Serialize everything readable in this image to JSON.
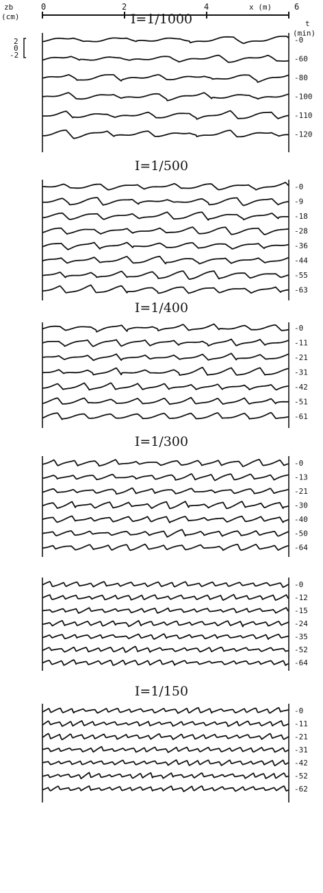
{
  "chart_data": [
    {
      "type": "line",
      "title": "I=1/1000",
      "xlabel": "x (m)",
      "xlabel_unit": "(m)",
      "xticks": [
        0,
        2,
        4,
        6
      ],
      "xlim": [
        0,
        6
      ],
      "ylabel": "zb",
      "ylabel_unit": "(cm)",
      "yticks": [
        "2",
        "0",
        "-2"
      ],
      "tlabel": "t",
      "tlabel_unit": "(min)",
      "series": [
        {
          "name": "0",
          "wavelength": 1.3,
          "amplitude": 2.0,
          "seed": 11
        },
        {
          "name": "60",
          "wavelength": 1.2,
          "amplitude": 2.0,
          "seed": 12
        },
        {
          "name": "80",
          "wavelength": 1.1,
          "amplitude": 2.0,
          "seed": 13
        },
        {
          "name": "100",
          "wavelength": 1.1,
          "amplitude": 2.0,
          "seed": 14
        },
        {
          "name": "110",
          "wavelength": 1.0,
          "amplitude": 2.0,
          "seed": 15
        },
        {
          "name": "120",
          "wavelength": 1.0,
          "amplitude": 2.0,
          "seed": 16
        }
      ]
    },
    {
      "type": "line",
      "title": "I=1/500",
      "series": [
        {
          "name": "0",
          "wavelength": 0.9,
          "amplitude": 1.9,
          "seed": 21
        },
        {
          "name": "9",
          "wavelength": 0.85,
          "amplitude": 1.9,
          "seed": 22
        },
        {
          "name": "18",
          "wavelength": 0.85,
          "amplitude": 1.9,
          "seed": 23
        },
        {
          "name": "28",
          "wavelength": 0.8,
          "amplitude": 1.9,
          "seed": 24
        },
        {
          "name": "36",
          "wavelength": 0.8,
          "amplitude": 1.9,
          "seed": 25
        },
        {
          "name": "44",
          "wavelength": 0.8,
          "amplitude": 1.9,
          "seed": 26
        },
        {
          "name": "55",
          "wavelength": 0.75,
          "amplitude": 1.9,
          "seed": 27
        },
        {
          "name": "63",
          "wavelength": 0.75,
          "amplitude": 1.9,
          "seed": 28
        }
      ]
    },
    {
      "type": "line",
      "title": "I=1/400",
      "series": [
        {
          "name": "0",
          "wavelength": 0.75,
          "amplitude": 1.9,
          "seed": 31
        },
        {
          "name": "11",
          "wavelength": 0.7,
          "amplitude": 1.9,
          "seed": 32
        },
        {
          "name": "21",
          "wavelength": 0.7,
          "amplitude": 1.9,
          "seed": 33
        },
        {
          "name": "31",
          "wavelength": 0.7,
          "amplitude": 1.9,
          "seed": 34
        },
        {
          "name": "42",
          "wavelength": 0.65,
          "amplitude": 1.9,
          "seed": 35
        },
        {
          "name": "51",
          "wavelength": 0.65,
          "amplitude": 1.9,
          "seed": 36
        },
        {
          "name": "61",
          "wavelength": 0.65,
          "amplitude": 1.9,
          "seed": 37
        }
      ]
    },
    {
      "type": "line",
      "title": "I=1/300",
      "series": [
        {
          "name": "0",
          "wavelength": 0.5,
          "amplitude": 1.6,
          "seed": 41
        },
        {
          "name": "13",
          "wavelength": 0.48,
          "amplitude": 1.6,
          "seed": 42
        },
        {
          "name": "21",
          "wavelength": 0.48,
          "amplitude": 1.6,
          "seed": 43
        },
        {
          "name": "30",
          "wavelength": 0.46,
          "amplitude": 1.6,
          "seed": 44
        },
        {
          "name": "40",
          "wavelength": 0.46,
          "amplitude": 1.6,
          "seed": 45
        },
        {
          "name": "50",
          "wavelength": 0.45,
          "amplitude": 1.6,
          "seed": 46
        },
        {
          "name": "64",
          "wavelength": 0.45,
          "amplitude": 1.6,
          "seed": 47
        }
      ]
    },
    {
      "type": "line",
      "title": "",
      "series": [
        {
          "name": "0",
          "wavelength": 0.33,
          "amplitude": 1.3,
          "seed": 51
        },
        {
          "name": "12",
          "wavelength": 0.32,
          "amplitude": 1.3,
          "seed": 52
        },
        {
          "name": "15",
          "wavelength": 0.32,
          "amplitude": 1.3,
          "seed": 53
        },
        {
          "name": "24",
          "wavelength": 0.31,
          "amplitude": 1.3,
          "seed": 54
        },
        {
          "name": "35",
          "wavelength": 0.31,
          "amplitude": 1.3,
          "seed": 55
        },
        {
          "name": "52",
          "wavelength": 0.3,
          "amplitude": 1.3,
          "seed": 56
        },
        {
          "name": "64",
          "wavelength": 0.3,
          "amplitude": 1.3,
          "seed": 57
        }
      ]
    },
    {
      "type": "line",
      "title": "I=1/150",
      "series": [
        {
          "name": "0",
          "wavelength": 0.28,
          "amplitude": 1.3,
          "seed": 61
        },
        {
          "name": "11",
          "wavelength": 0.27,
          "amplitude": 1.3,
          "seed": 62
        },
        {
          "name": "21",
          "wavelength": 0.27,
          "amplitude": 1.3,
          "seed": 63
        },
        {
          "name": "31",
          "wavelength": 0.26,
          "amplitude": 1.3,
          "seed": 64
        },
        {
          "name": "42",
          "wavelength": 0.26,
          "amplitude": 1.3,
          "seed": 65
        },
        {
          "name": "52",
          "wavelength": 0.25,
          "amplitude": 1.3,
          "seed": 66
        },
        {
          "name": "62",
          "wavelength": 0.25,
          "amplitude": 1.3,
          "seed": 67
        }
      ]
    }
  ]
}
